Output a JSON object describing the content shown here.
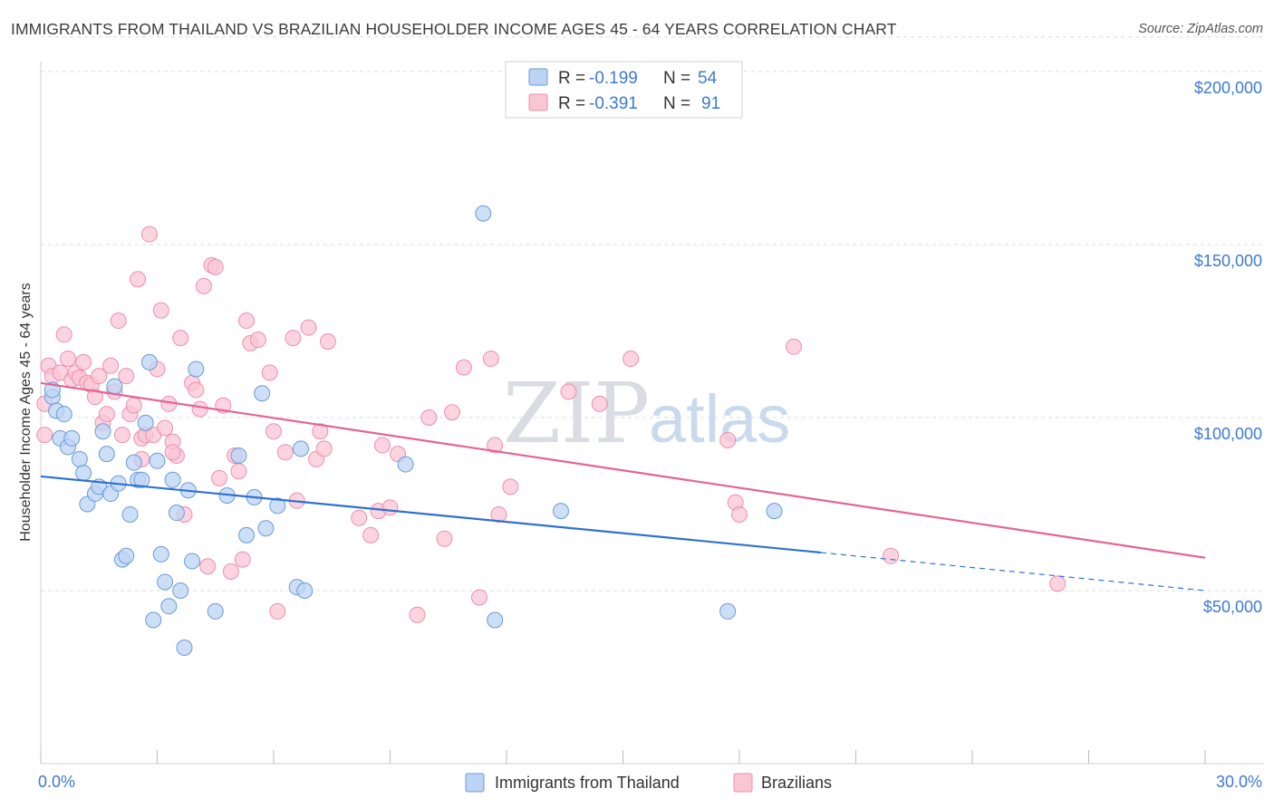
{
  "title": "IMMIGRANTS FROM THAILAND VS BRAZILIAN HOUSEHOLDER INCOME AGES 45 - 64 YEARS CORRELATION CHART",
  "source": "Source: ZipAtlas.com",
  "watermark": {
    "zip": "ZIP",
    "atlas": "atlas"
  },
  "colors": {
    "thailand_fill": "#bcd4f4",
    "thailand_stroke": "#6a9bd8",
    "thailand_line": "#2f72d0",
    "brazil_fill": "#f9c6d6",
    "brazil_stroke": "#ec8fae",
    "brazil_line": "#e36591",
    "value_text": "#3d7ad0",
    "grid": "#dcdcdc"
  },
  "legend": {
    "r_label": "R =",
    "n_label": "N =",
    "entries": [
      {
        "r": "-0.199",
        "n": "54"
      },
      {
        "r": "-0.391",
        "n": "91"
      }
    ]
  },
  "chart_data": {
    "type": "scatter",
    "title": "IMMIGRANTS FROM THAILAND VS BRAZILIAN HOUSEHOLDER INCOME AGES 45 - 64 YEARS CORRELATION CHART",
    "xlabel": "",
    "ylabel": "Householder Income Ages 45 - 64 years",
    "xlim": [
      0,
      30
    ],
    "ylim": [
      3000,
      210000
    ],
    "x_tick_labels": [
      "0.0%",
      "30.0%"
    ],
    "y_ticks": [
      50000,
      100000,
      150000,
      200000
    ],
    "y_tick_labels": [
      "$50,000",
      "$100,000",
      "$150,000",
      "$200,000"
    ],
    "grid": "horizontal dashed",
    "legend_position": "top-center",
    "series": [
      {
        "name": "Immigrants from Thailand",
        "trend": {
          "x0": 0,
          "y0": 83000,
          "x1": 20.1,
          "y1": 61000,
          "dashed_to_x": 30,
          "dashed_to_y": 50000
        },
        "points": [
          [
            0.3,
            106000
          ],
          [
            0.4,
            102000
          ],
          [
            0.6,
            101000
          ],
          [
            0.5,
            94000
          ],
          [
            0.7,
            91500
          ],
          [
            0.8,
            94000
          ],
          [
            1.0,
            88000
          ],
          [
            1.1,
            84000
          ],
          [
            1.2,
            75000
          ],
          [
            1.4,
            78000
          ],
          [
            1.5,
            80000
          ],
          [
            1.6,
            96000
          ],
          [
            1.7,
            89500
          ],
          [
            1.8,
            78000
          ],
          [
            2.0,
            81000
          ],
          [
            2.1,
            59000
          ],
          [
            2.2,
            60000
          ],
          [
            2.3,
            72000
          ],
          [
            2.4,
            87000
          ],
          [
            2.5,
            82000
          ],
          [
            2.6,
            82000
          ],
          [
            2.8,
            116000
          ],
          [
            2.9,
            41500
          ],
          [
            3.0,
            87500
          ],
          [
            3.1,
            60500
          ],
          [
            3.2,
            52500
          ],
          [
            3.3,
            45500
          ],
          [
            3.4,
            82000
          ],
          [
            3.5,
            72500
          ],
          [
            3.6,
            50000
          ],
          [
            3.7,
            33500
          ],
          [
            3.8,
            79000
          ],
          [
            3.9,
            58500
          ],
          [
            4.0,
            114000
          ],
          [
            4.5,
            44000
          ],
          [
            4.8,
            77500
          ],
          [
            5.1,
            89000
          ],
          [
            5.3,
            66000
          ],
          [
            5.5,
            77000
          ],
          [
            5.7,
            107000
          ],
          [
            5.8,
            68000
          ],
          [
            6.1,
            74500
          ],
          [
            6.7,
            91000
          ],
          [
            6.6,
            51000
          ],
          [
            6.8,
            50000
          ],
          [
            9.4,
            86500
          ],
          [
            11.4,
            159000
          ],
          [
            11.7,
            41500
          ],
          [
            13.4,
            73000
          ],
          [
            17.7,
            44000
          ],
          [
            18.9,
            73000
          ],
          [
            0.3,
            108000
          ],
          [
            1.9,
            109000
          ],
          [
            2.7,
            98500
          ]
        ]
      },
      {
        "name": "Brazilians",
        "trend": {
          "x0": 0,
          "y0": 110000,
          "x1": 30,
          "y1": 59500
        },
        "points": [
          [
            0.2,
            115000
          ],
          [
            0.3,
            112000
          ],
          [
            0.5,
            113000
          ],
          [
            0.6,
            124000
          ],
          [
            0.7,
            117000
          ],
          [
            0.8,
            111000
          ],
          [
            0.9,
            113000
          ],
          [
            1.0,
            111500
          ],
          [
            1.1,
            116000
          ],
          [
            1.2,
            110000
          ],
          [
            1.3,
            109500
          ],
          [
            1.4,
            106000
          ],
          [
            1.5,
            112000
          ],
          [
            1.6,
            98500
          ],
          [
            1.7,
            101000
          ],
          [
            1.8,
            115000
          ],
          [
            1.9,
            107500
          ],
          [
            2.0,
            128000
          ],
          [
            2.1,
            95000
          ],
          [
            2.2,
            112000
          ],
          [
            2.3,
            101000
          ],
          [
            2.4,
            103500
          ],
          [
            2.5,
            140000
          ],
          [
            2.6,
            94000
          ],
          [
            2.7,
            95000
          ],
          [
            2.8,
            153000
          ],
          [
            2.9,
            95000
          ],
          [
            3.0,
            114000
          ],
          [
            3.1,
            131000
          ],
          [
            3.2,
            97000
          ],
          [
            3.3,
            104000
          ],
          [
            3.4,
            93000
          ],
          [
            3.5,
            89000
          ],
          [
            3.6,
            123000
          ],
          [
            3.7,
            72000
          ],
          [
            3.9,
            110000
          ],
          [
            4.0,
            108000
          ],
          [
            4.1,
            102500
          ],
          [
            4.2,
            138000
          ],
          [
            4.3,
            57000
          ],
          [
            4.4,
            144000
          ],
          [
            4.5,
            143500
          ],
          [
            4.6,
            82500
          ],
          [
            4.7,
            103500
          ],
          [
            4.9,
            55500
          ],
          [
            5.0,
            89000
          ],
          [
            5.1,
            84500
          ],
          [
            5.2,
            59000
          ],
          [
            5.3,
            128000
          ],
          [
            5.4,
            121500
          ],
          [
            5.6,
            122500
          ],
          [
            5.9,
            113000
          ],
          [
            6.0,
            96000
          ],
          [
            6.3,
            90000
          ],
          [
            6.5,
            123000
          ],
          [
            6.6,
            76000
          ],
          [
            6.9,
            126000
          ],
          [
            7.1,
            88000
          ],
          [
            7.2,
            96000
          ],
          [
            7.3,
            91000
          ],
          [
            7.4,
            122000
          ],
          [
            8.2,
            71000
          ],
          [
            8.5,
            66000
          ],
          [
            8.7,
            73000
          ],
          [
            8.8,
            92000
          ],
          [
            9.0,
            74000
          ],
          [
            9.2,
            89500
          ],
          [
            9.7,
            43000
          ],
          [
            10.0,
            100000
          ],
          [
            10.4,
            65000
          ],
          [
            10.6,
            101500
          ],
          [
            10.9,
            114500
          ],
          [
            11.3,
            48000
          ],
          [
            11.6,
            117000
          ],
          [
            11.8,
            72000
          ],
          [
            11.7,
            92000
          ],
          [
            12.1,
            80000
          ],
          [
            13.6,
            107500
          ],
          [
            14.4,
            104000
          ],
          [
            15.2,
            117000
          ],
          [
            17.7,
            93500
          ],
          [
            17.9,
            75500
          ],
          [
            18.0,
            72000
          ],
          [
            19.4,
            120500
          ],
          [
            21.9,
            60000
          ],
          [
            26.2,
            52000
          ],
          [
            0.1,
            104000
          ],
          [
            0.1,
            95000
          ],
          [
            6.1,
            44000
          ],
          [
            3.4,
            90000
          ],
          [
            2.6,
            88000
          ]
        ]
      }
    ]
  },
  "bottom_legend": [
    {
      "label": "Immigrants from Thailand"
    },
    {
      "label": "Brazilians"
    }
  ]
}
